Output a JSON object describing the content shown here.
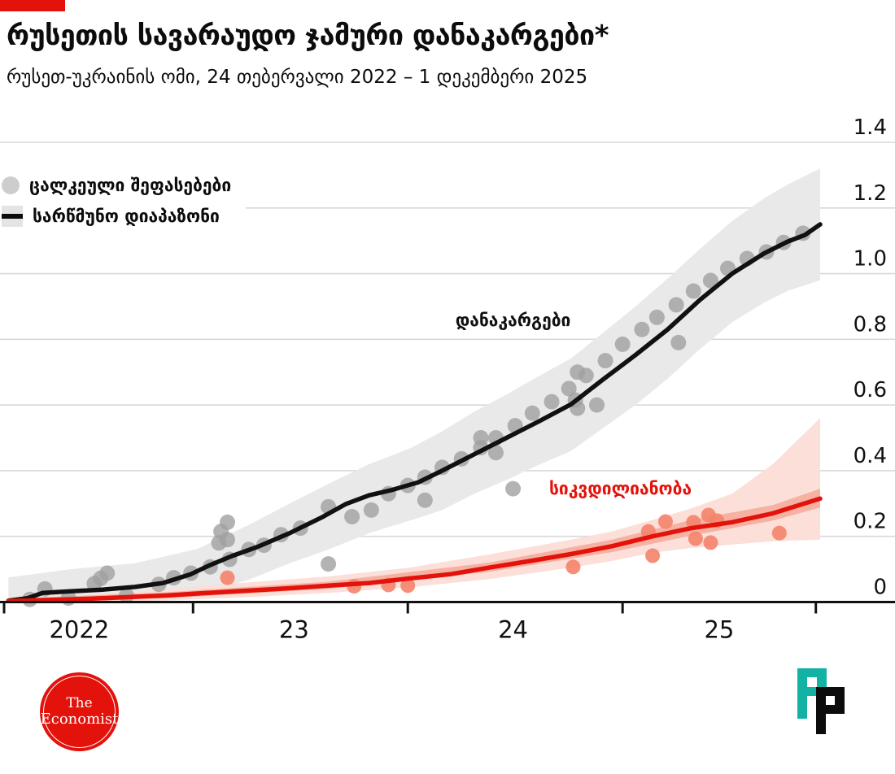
{
  "header": {
    "brand_bar_color": "#E3120B"
  },
  "legend": {
    "items": [
      {
        "label": "ცალკეული შეფასებები",
        "marker": "gray-dot"
      },
      {
        "label": "სარწმუნო დიაპაზონი",
        "marker": "black-line-on-gray-band"
      }
    ]
  },
  "colors": {
    "red": "#E3120B",
    "black_line": "#111111",
    "grid": "#D8D8D8",
    "gray_band": "#E9E9E9",
    "gray_dot": "#A0A0A0",
    "pink_band_outer": "#FBDFD8",
    "pink_band_inner": "#F5B2A3",
    "red_dot": "#F4836C",
    "teal": "#14B1A5",
    "axis": "#111111"
  },
  "footer": {
    "economist_logo": {
      "line1": "The",
      "line2": "Economist"
    }
  },
  "chart_data": {
    "type": "line",
    "title": "რუსეთის სავარაუდო ჯამური დანაკარგები*",
    "subtitle": "რუსეთ-უკრაინის ომი, 24 თებერვალი 2022 – 1 დეკემბერი 2025",
    "xlim": [
      2022.12,
      2025.92
    ],
    "ylim": [
      0,
      1.4
    ],
    "yticks": [
      0,
      0.2,
      0.4,
      0.6,
      0.8,
      1.0,
      1.2,
      1.4
    ],
    "ytick_labels": [
      "0",
      "0.2",
      "0.4",
      "0.6",
      "0.8",
      "1.0",
      "1.2",
      "1.4"
    ],
    "xticks": [
      2022.12,
      2023,
      2024,
      2025,
      2025.9
    ],
    "xlabels": [
      {
        "text": "2022",
        "x": 2022.47
      },
      {
        "text": "23",
        "x": 2023.47
      },
      {
        "text": "24",
        "x": 2024.49
      },
      {
        "text": "25",
        "x": 2025.45
      }
    ],
    "grid": true,
    "legend_position": "top-left",
    "series": [
      {
        "name": "დანაკარგები",
        "type": "line",
        "color_key": "black_line",
        "label_pos": [
          2024.49,
          0.86
        ],
        "points": [
          [
            2022.14,
            0.004
          ],
          [
            2022.23,
            0.012
          ],
          [
            2022.3,
            0.028
          ],
          [
            2022.43,
            0.033
          ],
          [
            2022.58,
            0.038
          ],
          [
            2022.73,
            0.046
          ],
          [
            2022.86,
            0.058
          ],
          [
            2022.99,
            0.085
          ],
          [
            2023.07,
            0.11
          ],
          [
            2023.18,
            0.14
          ],
          [
            2023.3,
            0.168
          ],
          [
            2023.45,
            0.21
          ],
          [
            2023.6,
            0.258
          ],
          [
            2023.71,
            0.298
          ],
          [
            2023.82,
            0.325
          ],
          [
            2023.93,
            0.342
          ],
          [
            2024.05,
            0.365
          ],
          [
            2024.16,
            0.4
          ],
          [
            2024.31,
            0.45
          ],
          [
            2024.46,
            0.5
          ],
          [
            2024.61,
            0.55
          ],
          [
            2024.76,
            0.602
          ],
          [
            2024.91,
            0.678
          ],
          [
            2025.06,
            0.752
          ],
          [
            2025.21,
            0.83
          ],
          [
            2025.36,
            0.92
          ],
          [
            2025.51,
            1.0
          ],
          [
            2025.66,
            1.062
          ],
          [
            2025.77,
            1.098
          ],
          [
            2025.85,
            1.118
          ],
          [
            2025.92,
            1.15
          ]
        ],
        "band": [
          [
            2022.14,
            0.0,
            0.075
          ],
          [
            2022.43,
            0.0,
            0.1
          ],
          [
            2022.73,
            0.004,
            0.118
          ],
          [
            2023.02,
            0.022,
            0.162
          ],
          [
            2023.26,
            0.068,
            0.235
          ],
          [
            2023.45,
            0.118,
            0.3
          ],
          [
            2023.63,
            0.16,
            0.36
          ],
          [
            2023.82,
            0.21,
            0.42
          ],
          [
            2024.01,
            0.248,
            0.468
          ],
          [
            2024.16,
            0.28,
            0.52
          ],
          [
            2024.31,
            0.33,
            0.58
          ],
          [
            2024.46,
            0.372,
            0.632
          ],
          [
            2024.61,
            0.418,
            0.688
          ],
          [
            2024.76,
            0.46,
            0.742
          ],
          [
            2024.91,
            0.53,
            0.82
          ],
          [
            2025.06,
            0.6,
            0.9
          ],
          [
            2025.21,
            0.68,
            0.985
          ],
          [
            2025.36,
            0.77,
            1.075
          ],
          [
            2025.51,
            0.852,
            1.16
          ],
          [
            2025.66,
            0.912,
            1.23
          ],
          [
            2025.77,
            0.948,
            1.272
          ],
          [
            2025.92,
            0.98,
            1.32
          ]
        ]
      },
      {
        "name": "სიკვდილიანობა",
        "type": "line",
        "color_key": "red",
        "label_pos": [
          2024.99,
          0.348
        ],
        "points": [
          [
            2022.14,
            0.003
          ],
          [
            2022.51,
            0.01
          ],
          [
            2022.88,
            0.02
          ],
          [
            2023.02,
            0.026
          ],
          [
            2023.26,
            0.035
          ],
          [
            2023.45,
            0.042
          ],
          [
            2023.63,
            0.05
          ],
          [
            2023.82,
            0.058
          ],
          [
            2024.01,
            0.072
          ],
          [
            2024.2,
            0.085
          ],
          [
            2024.38,
            0.105
          ],
          [
            2024.57,
            0.125
          ],
          [
            2024.76,
            0.146
          ],
          [
            2024.95,
            0.17
          ],
          [
            2025.14,
            0.2
          ],
          [
            2025.32,
            0.225
          ],
          [
            2025.51,
            0.243
          ],
          [
            2025.7,
            0.27
          ],
          [
            2025.92,
            0.315
          ]
        ],
        "band_outer": [
          [
            2022.14,
            0.0,
            0.012
          ],
          [
            2022.51,
            0.0,
            0.022
          ],
          [
            2022.88,
            0.005,
            0.04
          ],
          [
            2023.26,
            0.015,
            0.06
          ],
          [
            2023.63,
            0.028,
            0.078
          ],
          [
            2024.01,
            0.045,
            0.105
          ],
          [
            2024.38,
            0.07,
            0.145
          ],
          [
            2024.76,
            0.105,
            0.19
          ],
          [
            2024.95,
            0.125,
            0.215
          ],
          [
            2025.14,
            0.15,
            0.25
          ],
          [
            2025.32,
            0.165,
            0.285
          ],
          [
            2025.51,
            0.175,
            0.33
          ],
          [
            2025.7,
            0.185,
            0.42
          ],
          [
            2025.92,
            0.19,
            0.56
          ]
        ],
        "band_inner": [
          [
            2022.14,
            0.0,
            0.01
          ],
          [
            2022.88,
            0.012,
            0.03
          ],
          [
            2023.63,
            0.04,
            0.062
          ],
          [
            2024.38,
            0.092,
            0.12
          ],
          [
            2024.95,
            0.152,
            0.19
          ],
          [
            2025.32,
            0.202,
            0.25
          ],
          [
            2025.7,
            0.248,
            0.295
          ],
          [
            2025.92,
            0.288,
            0.345
          ]
        ]
      }
    ],
    "scatter": [
      {
        "name": "ცალკეული შეფასებები — დანაკარგები",
        "color_key": "gray_dot",
        "points": [
          [
            2022.24,
            0.008
          ],
          [
            2022.31,
            0.04
          ],
          [
            2022.42,
            0.012
          ],
          [
            2022.54,
            0.056
          ],
          [
            2022.57,
            0.072
          ],
          [
            2022.6,
            0.088
          ],
          [
            2022.69,
            0.02
          ],
          [
            2022.84,
            0.054
          ],
          [
            2022.91,
            0.074
          ],
          [
            2022.99,
            0.088
          ],
          [
            2023.08,
            0.107
          ],
          [
            2023.12,
            0.18
          ],
          [
            2023.13,
            0.215
          ],
          [
            2023.16,
            0.19
          ],
          [
            2023.16,
            0.243
          ],
          [
            2023.17,
            0.13
          ],
          [
            2023.26,
            0.16
          ],
          [
            2023.33,
            0.173
          ],
          [
            2023.41,
            0.205
          ],
          [
            2023.5,
            0.225
          ],
          [
            2023.63,
            0.29
          ],
          [
            2023.63,
            0.116
          ],
          [
            2023.74,
            0.26
          ],
          [
            2023.83,
            0.28
          ],
          [
            2023.91,
            0.33
          ],
          [
            2024.0,
            0.355
          ],
          [
            2024.08,
            0.38
          ],
          [
            2024.08,
            0.31
          ],
          [
            2024.16,
            0.41
          ],
          [
            2024.25,
            0.436
          ],
          [
            2024.34,
            0.5
          ],
          [
            2024.34,
            0.47
          ],
          [
            2024.41,
            0.5
          ],
          [
            2024.41,
            0.455
          ],
          [
            2024.49,
            0.345
          ],
          [
            2024.5,
            0.537
          ],
          [
            2024.58,
            0.575
          ],
          [
            2024.67,
            0.61
          ],
          [
            2024.75,
            0.65
          ],
          [
            2024.78,
            0.615
          ],
          [
            2024.79,
            0.7
          ],
          [
            2024.79,
            0.59
          ],
          [
            2024.83,
            0.69
          ],
          [
            2024.88,
            0.6
          ],
          [
            2024.92,
            0.735
          ],
          [
            2025.0,
            0.785
          ],
          [
            2025.09,
            0.83
          ],
          [
            2025.16,
            0.867
          ],
          [
            2025.25,
            0.905
          ],
          [
            2025.26,
            0.79
          ],
          [
            2025.33,
            0.947
          ],
          [
            2025.41,
            0.979
          ],
          [
            2025.49,
            1.016
          ],
          [
            2025.58,
            1.046
          ],
          [
            2025.67,
            1.066
          ],
          [
            2025.75,
            1.095
          ],
          [
            2025.84,
            1.123
          ]
        ]
      },
      {
        "name": "ცალკეული შეფასებები — სიკვდილიანობა",
        "color_key": "red_dot",
        "points": [
          [
            2023.16,
            0.074
          ],
          [
            2023.75,
            0.048
          ],
          [
            2023.91,
            0.052
          ],
          [
            2024.0,
            0.05
          ],
          [
            2024.77,
            0.107
          ],
          [
            2025.12,
            0.215
          ],
          [
            2025.14,
            0.141
          ],
          [
            2025.2,
            0.245
          ],
          [
            2025.33,
            0.243
          ],
          [
            2025.34,
            0.193
          ],
          [
            2025.4,
            0.265
          ],
          [
            2025.44,
            0.248
          ],
          [
            2025.41,
            0.181
          ],
          [
            2025.73,
            0.21
          ]
        ]
      }
    ]
  }
}
